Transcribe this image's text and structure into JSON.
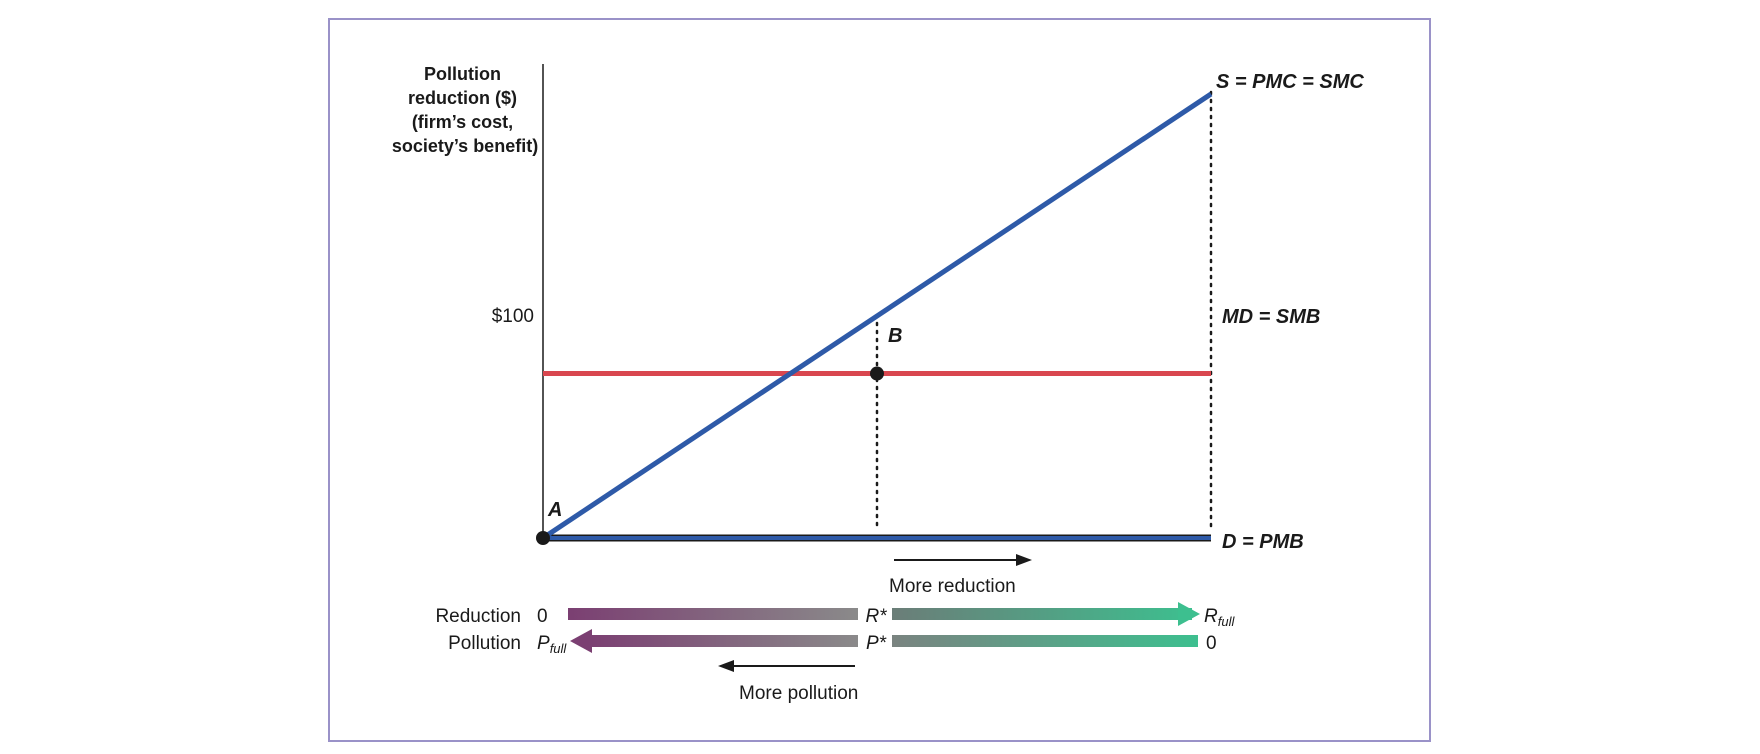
{
  "chart_data": {
    "type": "line",
    "ylabel_lines": [
      "Pollution",
      "reduction ($)",
      "(firm’s cost,",
      "society’s benefit)"
    ],
    "y_tick_label": "$100",
    "y_tick_value": 100,
    "ylim": [
      0,
      270
    ],
    "xlim": [
      0,
      2
    ],
    "series": [
      {
        "name": "S = PMC = SMC",
        "color": "#2e5aa8",
        "points": [
          [
            0,
            0
          ],
          [
            2,
            270
          ]
        ]
      },
      {
        "name": "MD = SMB",
        "color": "#d9474f",
        "points": [
          [
            0,
            100
          ],
          [
            2,
            100
          ]
        ]
      },
      {
        "name": "D = PMB",
        "color": "#2e5aa8",
        "points": [
          [
            0,
            0
          ],
          [
            2,
            0
          ]
        ]
      }
    ],
    "points": [
      {
        "label": "A",
        "x": 0,
        "y": 0
      },
      {
        "label": "B",
        "x": 1,
        "y": 100
      }
    ],
    "x_markers": {
      "reduction_row": {
        "label": "Reduction",
        "start": "0",
        "mid": "R*",
        "end_main": "R",
        "end_sub": "full"
      },
      "pollution_row": {
        "label": "Pollution",
        "start_main": "P",
        "start_sub": "full",
        "mid": "P*",
        "end": "0"
      }
    },
    "annotations": {
      "more_reduction": "More reduction",
      "more_pollution": "More pollution"
    },
    "colors": {
      "frame": "#9a92c8",
      "supply": "#2e5aa8",
      "md": "#d9474f",
      "axis": "#1a1a1a",
      "purple": "#7b3f72",
      "gray": "#8a8a8a",
      "green": "#3dbf8f"
    }
  }
}
